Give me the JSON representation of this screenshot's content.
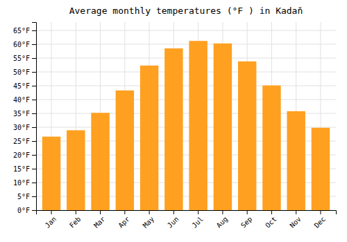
{
  "chart_data": {
    "type": "bar",
    "title": "Average monthly temperatures (°F ) in Kadaň",
    "categories": [
      "Jan",
      "Feb",
      "Mar",
      "Apr",
      "May",
      "Jun",
      "Jul",
      "Aug",
      "Sep",
      "Oct",
      "Nov",
      "Dec"
    ],
    "values": [
      26.6,
      28.9,
      35.2,
      43.3,
      52.3,
      58.5,
      61.2,
      60.3,
      53.8,
      45.1,
      35.8,
      29.8
    ],
    "color": "#FFA020",
    "ylim": [
      0,
      68
    ],
    "yticks": [
      {
        "value": 0,
        "label": "0°F"
      },
      {
        "value": 5,
        "label": "5°F"
      },
      {
        "value": 10,
        "label": "10°F"
      },
      {
        "value": 15,
        "label": "15°F"
      },
      {
        "value": 20,
        "label": "20°F"
      },
      {
        "value": 25,
        "label": "25°F"
      },
      {
        "value": 30,
        "label": "30°F"
      },
      {
        "value": 35,
        "label": "35°F"
      },
      {
        "value": 40,
        "label": "40°F"
      },
      {
        "value": 45,
        "label": "45°F"
      },
      {
        "value": 50,
        "label": "50°F"
      },
      {
        "value": 55,
        "label": "55°F"
      },
      {
        "value": 60,
        "label": "60°F"
      },
      {
        "value": 65,
        "label": "65°F"
      }
    ],
    "grid": true
  }
}
